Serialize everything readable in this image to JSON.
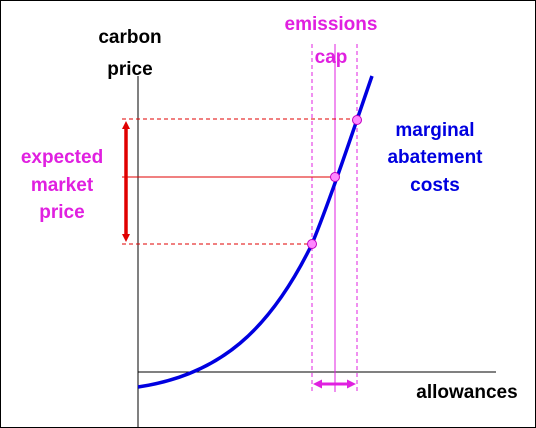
{
  "diagram": {
    "y_axis_label": [
      "carbon",
      "price"
    ],
    "x_axis_label": "allowances",
    "cap_label": [
      "emissions",
      "cap"
    ],
    "price_label": [
      "expected",
      "market",
      "price"
    ],
    "curve_label": [
      "marginal",
      "abatement",
      "costs"
    ]
  }
}
